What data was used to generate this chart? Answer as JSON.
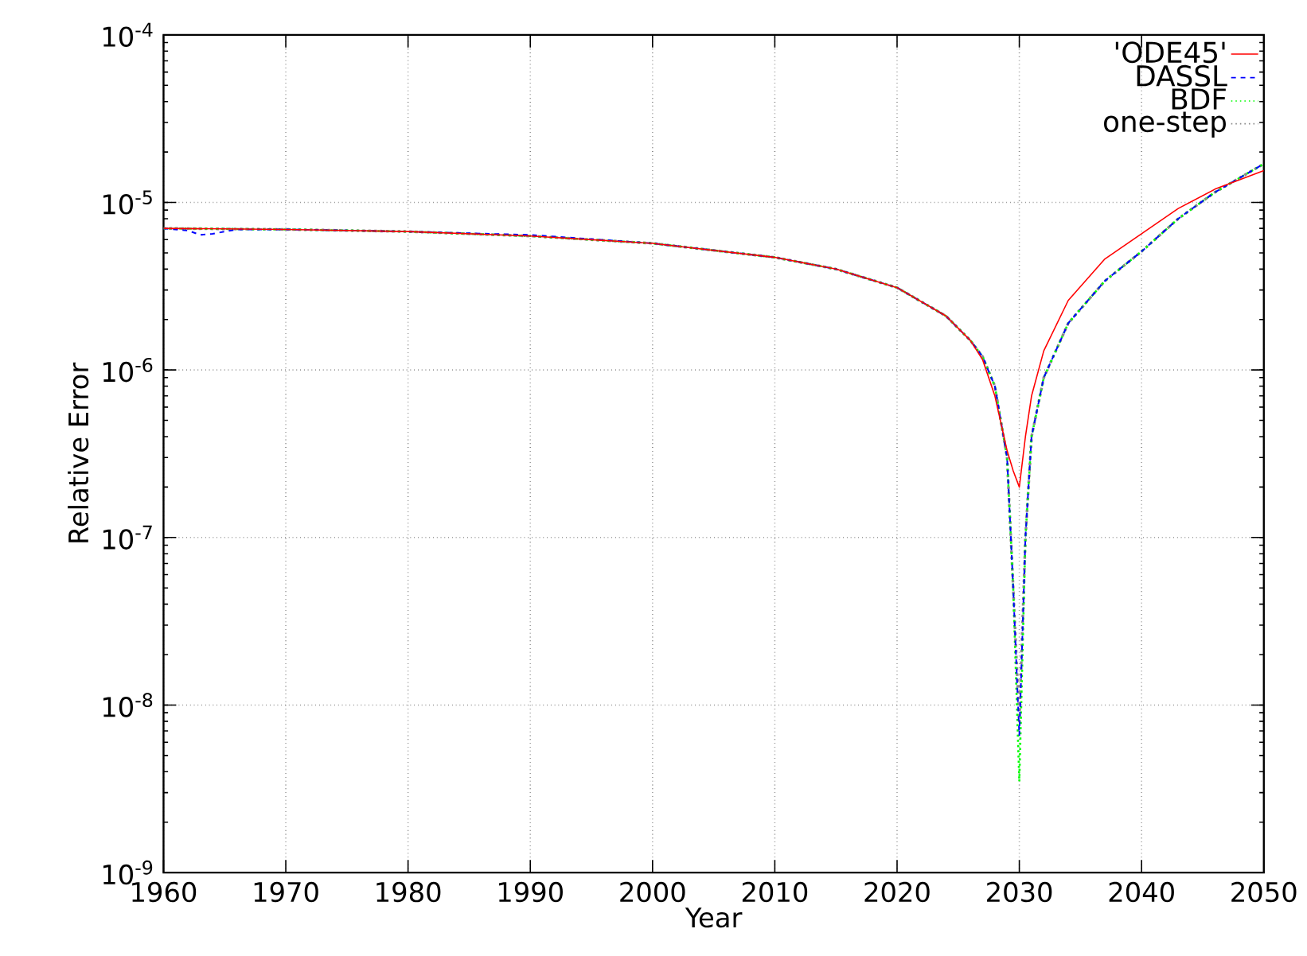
{
  "chart_data": {
    "type": "line",
    "xlabel": "Year",
    "ylabel": "Relative Error",
    "xlim": [
      1960,
      2050
    ],
    "xticks": [
      1960,
      1970,
      1980,
      1990,
      2000,
      2010,
      2020,
      2030,
      2040,
      2050
    ],
    "ylim": [
      1e-09,
      0.0001
    ],
    "log": "y",
    "yticks": [
      {
        "value": 1e-09,
        "label": "10$^{-9}$"
      },
      {
        "value": 1e-08,
        "label": "10$^{-8}$"
      },
      {
        "value": 1e-07,
        "label": "10$^{-7}$"
      },
      {
        "value": 1e-06,
        "label": "10$^{-6}$"
      },
      {
        "value": 1e-05,
        "label": "10$^{-5}$"
      },
      {
        "value": 0.0001,
        "label": "10$^{-4}$"
      }
    ],
    "grid": true,
    "legend": "top right",
    "marker": "none",
    "series": [
      {
        "name": "'ODE45'",
        "color": "#ff0000",
        "line_style": "solid",
        "x": [
          1960,
          1970,
          1980,
          1990,
          2000,
          2010,
          2015,
          2020,
          2024,
          2026,
          2027,
          2028,
          2029,
          2029.5,
          2030,
          2030.5,
          2031,
          2032,
          2034,
          2037,
          2040,
          2043,
          2046,
          2050
        ],
        "values": [
          7e-06,
          6.9e-06,
          6.7e-06,
          6.3e-06,
          5.7e-06,
          4.7e-06,
          4e-06,
          3.1e-06,
          2.1e-06,
          1.5e-06,
          1.15e-06,
          7e-07,
          3.3e-07,
          2.5e-07,
          2e-07,
          4e-07,
          7e-07,
          1.3e-06,
          2.6e-06,
          4.6e-06,
          6.5e-06,
          9.2e-06,
          1.2e-05,
          1.55e-05
        ]
      },
      {
        "name": "DASSL",
        "color": "#0000ff",
        "line_style": "dashed",
        "x": [
          1960,
          1962,
          1963,
          1964,
          1966,
          1970,
          1980,
          1990,
          2000,
          2010,
          2015,
          2020,
          2024,
          2026,
          2027,
          2028,
          2029,
          2029.5,
          2030,
          2030.5,
          2031,
          2032,
          2034,
          2037,
          2040,
          2043,
          2046,
          2050
        ],
        "values": [
          7e-06,
          6.8e-06,
          6.4e-06,
          6.5e-06,
          6.9e-06,
          6.9e-06,
          6.7e-06,
          6.4e-06,
          5.7e-06,
          4.7e-06,
          4e-06,
          3.1e-06,
          2.1e-06,
          1.5e-06,
          1.2e-06,
          8e-07,
          3e-07,
          5e-08,
          6.6e-09,
          1e-07,
          4e-07,
          9e-07,
          1.9e-06,
          3.4e-06,
          5.1e-06,
          8e-06,
          1.15e-05,
          1.7e-05
        ]
      },
      {
        "name": "BDF",
        "color": "#00ff00",
        "line_style": "dotted",
        "x": [
          1960,
          1970,
          1980,
          1990,
          2000,
          2010,
          2015,
          2020,
          2024,
          2026,
          2027,
          2028,
          2029,
          2029.5,
          2030,
          2030.5,
          2031,
          2032,
          2034,
          2037,
          2040,
          2043,
          2046,
          2050
        ],
        "values": [
          7e-06,
          6.9e-06,
          6.7e-06,
          6.3e-06,
          5.7e-06,
          4.7e-06,
          4e-06,
          3.1e-06,
          2.1e-06,
          1.5e-06,
          1.2e-06,
          8e-07,
          3e-07,
          5e-08,
          3.5e-09,
          1e-07,
          4e-07,
          9e-07,
          1.9e-06,
          3.4e-06,
          5.1e-06,
          8e-06,
          1.15e-05,
          1.7e-05
        ]
      },
      {
        "name": "one-step",
        "color": "#888888",
        "line_style": "dotted",
        "x": [
          1960,
          1970,
          1980,
          1990,
          2000,
          2010,
          2015,
          2020,
          2024,
          2026,
          2027,
          2028,
          2029,
          2029.5,
          2030,
          2030.5,
          2031,
          2032,
          2034,
          2037,
          2040,
          2043,
          2046,
          2050
        ],
        "values": [
          7e-06,
          6.9e-06,
          6.7e-06,
          6.3e-06,
          5.7e-06,
          4.7e-06,
          4e-06,
          3.1e-06,
          2.1e-06,
          1.5e-06,
          1.2e-06,
          8e-07,
          3e-07,
          5e-08,
          8e-09,
          1e-07,
          4e-07,
          9e-07,
          1.9e-06,
          3.4e-06,
          5.1e-06,
          8e-06,
          1.15e-05,
          1.7e-05
        ]
      }
    ]
  }
}
